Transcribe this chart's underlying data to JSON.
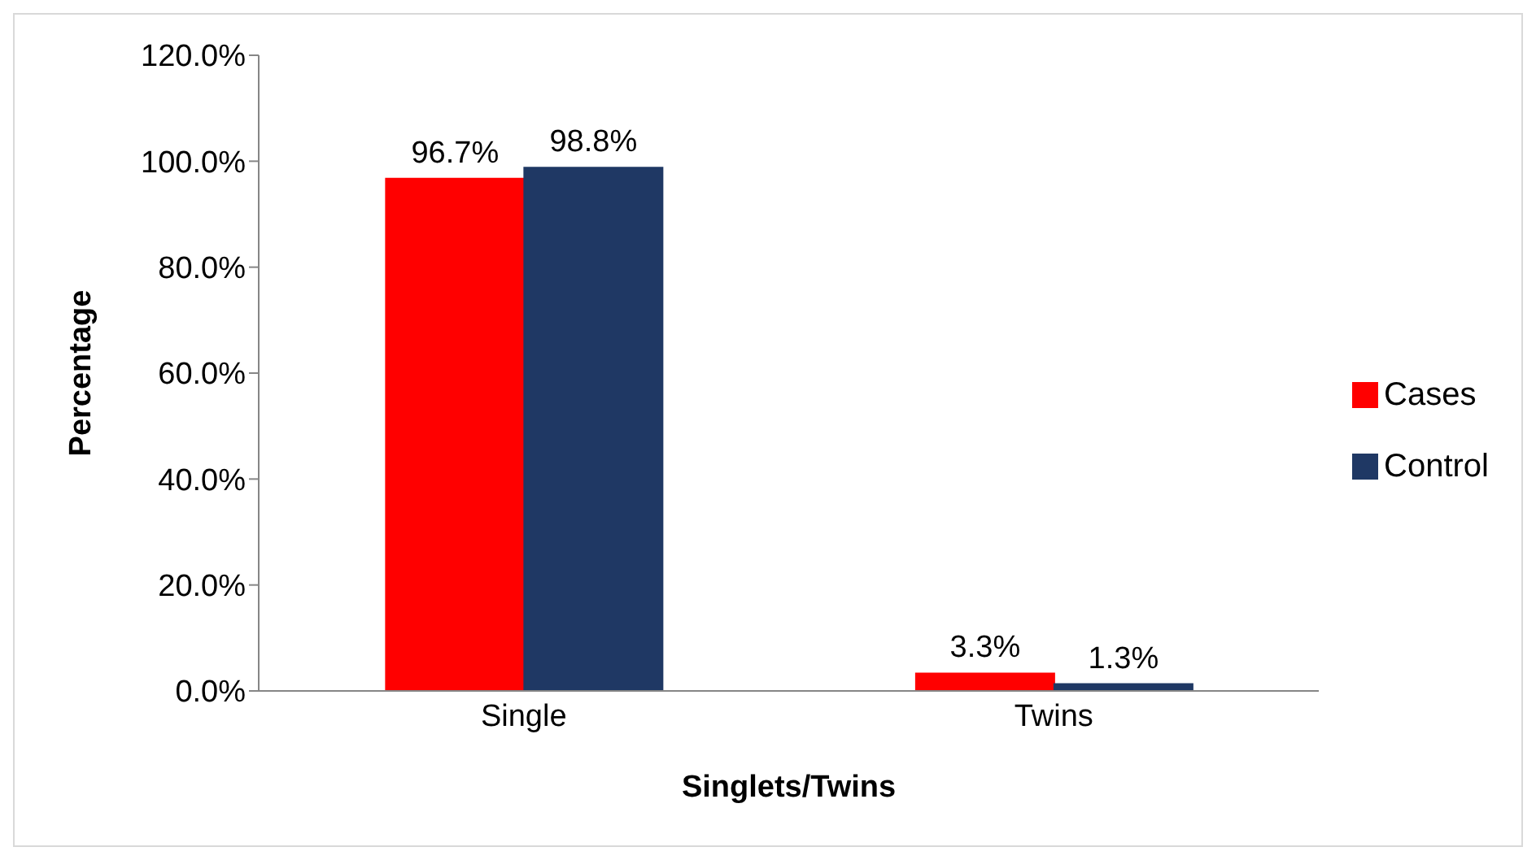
{
  "chart_data": {
    "type": "bar",
    "xlabel": "Singlets/Twins",
    "ylabel": "Percentage",
    "categories": [
      "Single",
      "Twins"
    ],
    "series": [
      {
        "name": "Cases",
        "color": "#ff0000",
        "values": [
          96.7,
          3.3
        ],
        "value_labels": [
          "96.7%",
          "3.3%"
        ]
      },
      {
        "name": "Control",
        "color": "#1f3864",
        "values": [
          98.8,
          1.3
        ],
        "value_labels": [
          "98.8%",
          "1.3%"
        ]
      }
    ],
    "ylim": [
      0,
      120
    ],
    "yticks": [
      {
        "value": 0,
        "label": "0.0%"
      },
      {
        "value": 20,
        "label": "20.0%"
      },
      {
        "value": 40,
        "label": "40.0%"
      },
      {
        "value": 60,
        "label": "60.0%"
      },
      {
        "value": 80,
        "label": "80.0%"
      },
      {
        "value": 100,
        "label": "100.0%"
      },
      {
        "value": 120,
        "label": "120.0%"
      }
    ],
    "grid": false,
    "legend": "right"
  }
}
